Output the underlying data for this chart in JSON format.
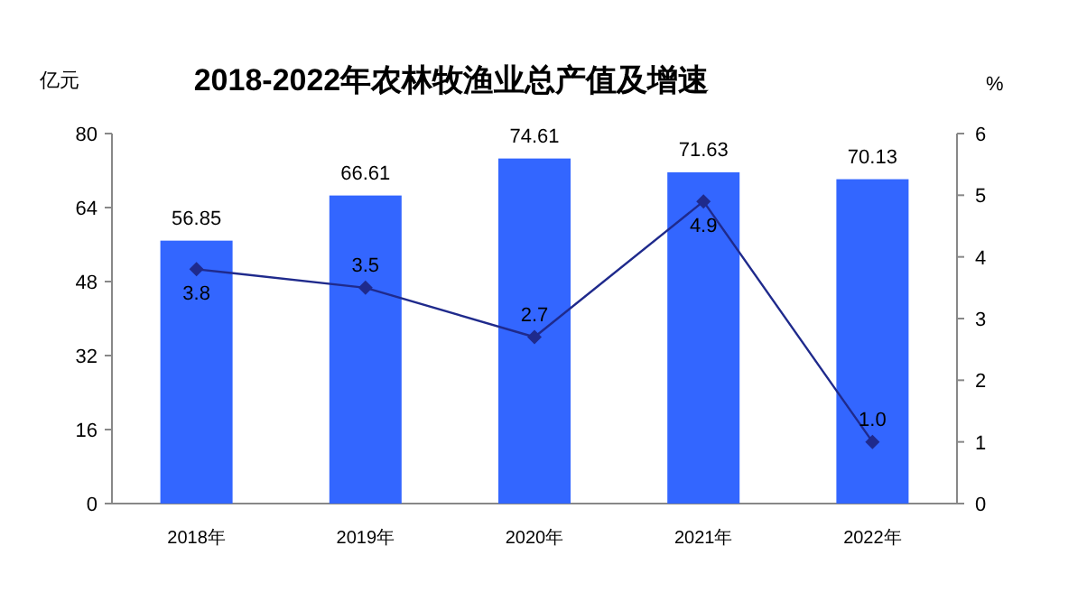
{
  "chart_data": {
    "type": "bar",
    "title": "2018-2022年农林牧渔业总产值及增速",
    "ylabel": "亿元",
    "y2label": "%",
    "categories": [
      "2018年",
      "2019年",
      "2020年",
      "2021年",
      "2022年"
    ],
    "series": [
      {
        "color": "#3366ff",
        "values": [
          56.85,
          66.61,
          74.61,
          71.63,
          70.13
        ]
      },
      {
        "type": "line",
        "axis": "y2",
        "color": "#1f2a8c",
        "marker": "diamond",
        "values": [
          3.8,
          3.5,
          2.7,
          4.9,
          1.0
        ],
        "value_labels": [
          "3.8",
          "3.5",
          "2.7",
          "4.9",
          "1.0"
        ]
      }
    ],
    "ylim": [
      0,
      80
    ],
    "yticks": [
      0,
      16,
      32,
      48,
      64,
      80
    ],
    "y2lim": [
      0,
      6
    ],
    "y2ticks": [
      0,
      1,
      2,
      3,
      4,
      5,
      6
    ],
    "data_labels": true
  }
}
